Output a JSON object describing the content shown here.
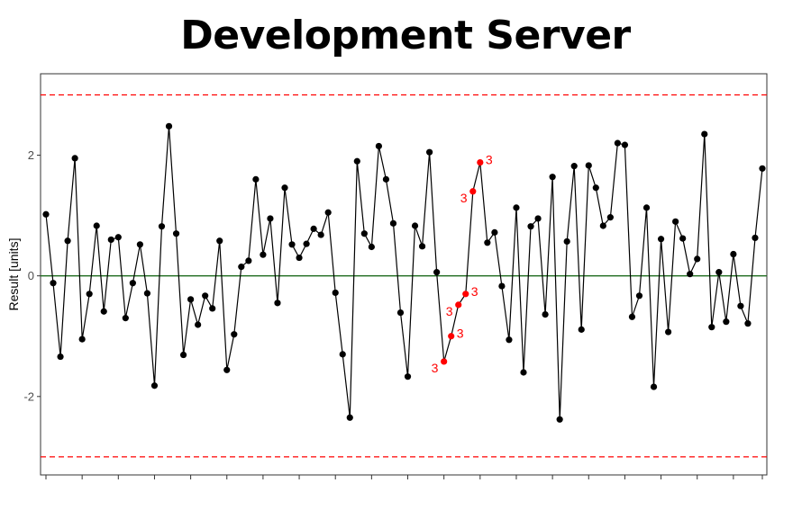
{
  "title": "Development Server",
  "chart_data": {
    "type": "line",
    "title": "Development Server",
    "xlabel": "",
    "ylabel": "Result [units]",
    "ylim": [
      -3.3,
      3.35
    ],
    "yticks": [
      -2,
      0,
      2
    ],
    "ytick_labels": [
      "-2",
      "0",
      "2"
    ],
    "grid": false,
    "center_line": 0,
    "control_limits": [
      -3,
      3
    ],
    "colors": {
      "series": "#000000",
      "center_line": "#1e6b1e",
      "control_limits": "#ff0000",
      "flagged": "#ff0000"
    },
    "values": [
      1.02,
      -0.12,
      -1.34,
      0.58,
      1.95,
      -1.05,
      -0.3,
      0.83,
      -0.59,
      0.6,
      0.64,
      -0.7,
      -0.12,
      0.52,
      -0.29,
      -1.82,
      0.82,
      2.48,
      0.7,
      -1.31,
      -0.39,
      -0.81,
      -0.33,
      -0.54,
      0.58,
      -1.56,
      -0.97,
      0.15,
      0.25,
      1.6,
      0.35,
      0.95,
      -0.45,
      1.46,
      0.52,
      0.3,
      0.53,
      0.78,
      0.68,
      1.05,
      -0.28,
      -1.3,
      -2.35,
      1.9,
      0.7,
      0.48,
      2.15,
      1.6,
      0.87,
      -0.61,
      -1.67,
      0.83,
      0.49,
      2.05,
      0.06,
      -1.42,
      -1.0,
      -0.48,
      -0.3,
      1.4,
      1.88,
      0.55,
      0.72,
      -0.17,
      -1.06,
      1.13,
      -1.6,
      0.82,
      0.95,
      -0.64,
      1.64,
      -2.38,
      0.57,
      1.82,
      -0.89,
      1.83,
      1.46,
      0.83,
      0.97,
      2.2,
      2.17,
      -0.68,
      -0.33,
      1.13,
      -1.84,
      0.61,
      -0.93,
      0.9,
      0.62,
      0.03,
      0.28,
      2.35,
      -0.85,
      0.06,
      -0.76,
      0.36,
      -0.5,
      -0.79,
      0.63,
      1.78
    ],
    "flagged_points": [
      {
        "index": 55,
        "label": "3"
      },
      {
        "index": 56,
        "label": "3"
      },
      {
        "index": 57,
        "label": "3"
      },
      {
        "index": 58,
        "label": "3"
      },
      {
        "index": 59,
        "label": "3"
      },
      {
        "index": 60,
        "label": "3"
      }
    ]
  }
}
